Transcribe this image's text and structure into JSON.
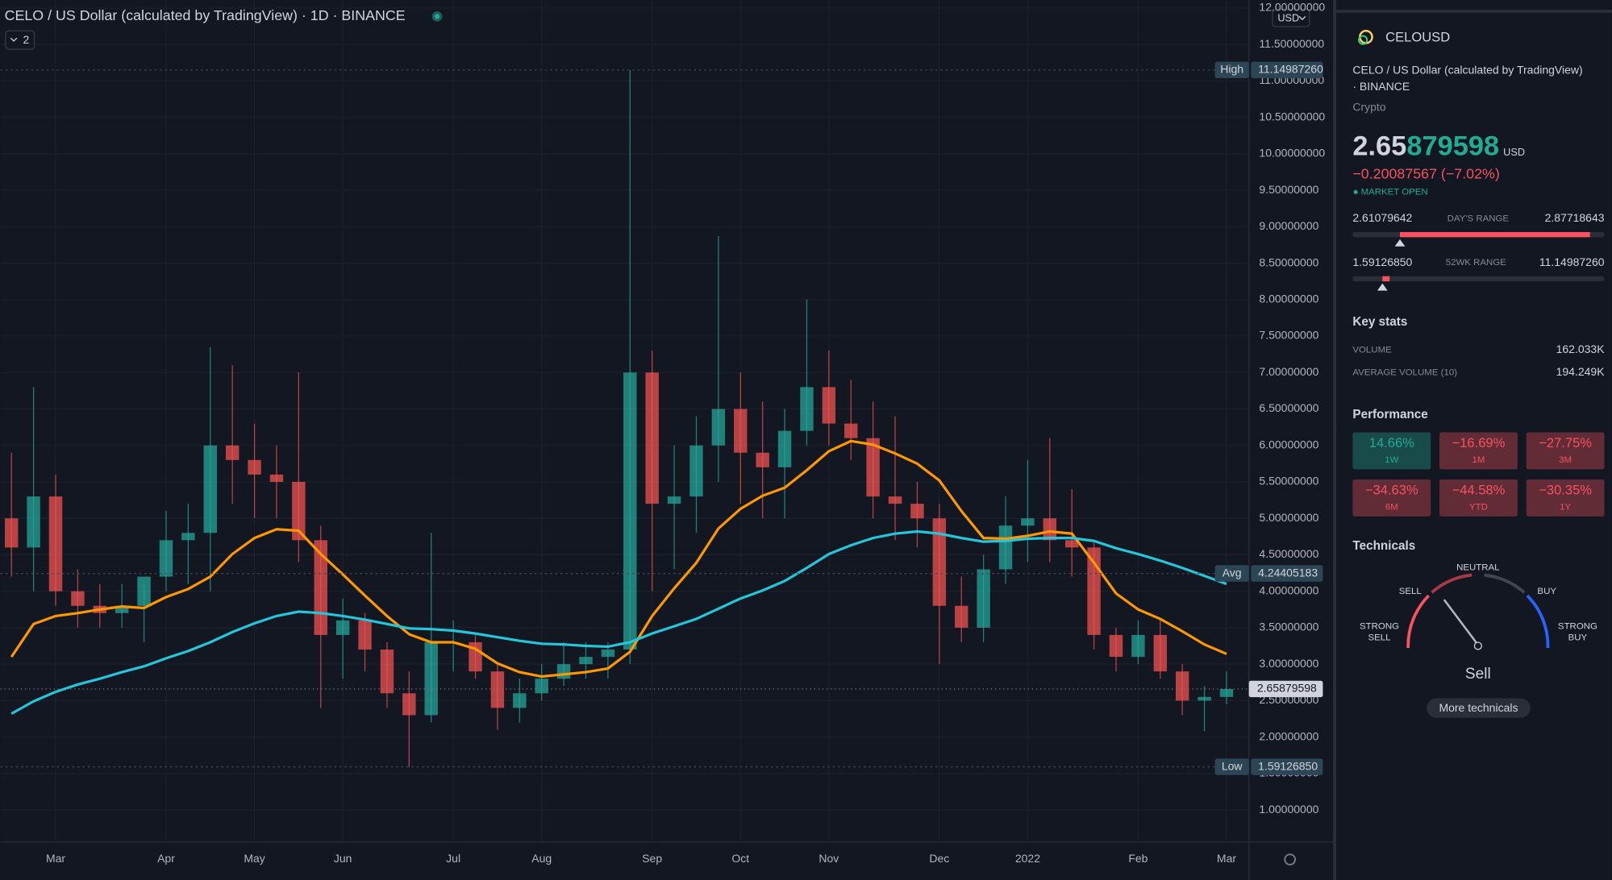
{
  "chart_data": {
    "type": "candlestick",
    "legend_title": "CELO / US Dollar (calculated by TradingView) · 1D · BINANCE",
    "indicator_count": "2",
    "currency": "USD",
    "categories": [
      null,
      null,
      "Mar",
      null,
      null,
      null,
      null,
      "Apr",
      null,
      null,
      null,
      "May",
      null,
      null,
      null,
      "Jun",
      null,
      null,
      null,
      null,
      "Jul",
      null,
      null,
      null,
      "Aug",
      null,
      null,
      null,
      null,
      "Sep",
      null,
      null,
      null,
      "Oct",
      null,
      null,
      null,
      "Nov",
      null,
      null,
      null,
      null,
      "Dec",
      null,
      null,
      null,
      "2022",
      null,
      null,
      null,
      null,
      "Feb",
      null,
      null,
      null,
      "Mar"
    ],
    "open": [
      5.0,
      4.6,
      5.3,
      4.0,
      3.8,
      3.7,
      3.8,
      4.2,
      4.7,
      4.8,
      6.0,
      5.8,
      5.6,
      5.5,
      4.7,
      3.4,
      3.6,
      3.2,
      2.6,
      2.3,
      3.3,
      3.3,
      2.9,
      2.4,
      2.6,
      2.8,
      3.0,
      3.1,
      3.2,
      7.0,
      5.2,
      5.3,
      6.0,
      6.5,
      5.9,
      5.7,
      6.2,
      6.8,
      6.3,
      6.1,
      5.3,
      5.2,
      5.0,
      3.8,
      3.5,
      4.3,
      4.9,
      5.0,
      4.7,
      4.6,
      3.4,
      3.1,
      3.4,
      2.9,
      2.5,
      2.55
    ],
    "high": [
      5.9,
      6.8,
      5.6,
      4.3,
      4.1,
      4.1,
      4.1,
      5.1,
      5.2,
      7.35,
      7.1,
      6.3,
      6.0,
      7.0,
      4.9,
      3.9,
      3.7,
      3.3,
      2.9,
      4.8,
      3.6,
      3.4,
      3.0,
      2.8,
      3.0,
      3.3,
      3.3,
      3.3,
      11.15,
      7.3,
      6.0,
      6.4,
      8.87,
      7.0,
      6.6,
      6.5,
      8.0,
      7.3,
      6.9,
      6.6,
      6.4,
      5.5,
      5.2,
      4.2,
      4.5,
      5.3,
      5.8,
      6.1,
      5.4,
      4.7,
      3.5,
      3.6,
      3.6,
      3.0,
      2.7,
      2.9
    ],
    "low": [
      4.2,
      4.0,
      3.8,
      3.5,
      3.5,
      3.5,
      3.3,
      4.0,
      4.1,
      4.0,
      5.2,
      5.0,
      5.0,
      4.4,
      2.4,
      2.8,
      2.9,
      2.4,
      1.59,
      2.2,
      2.9,
      2.8,
      2.1,
      2.2,
      2.5,
      2.7,
      2.8,
      2.8,
      3.0,
      4.0,
      4.3,
      4.8,
      5.5,
      5.2,
      5.0,
      5.0,
      6.0,
      6.0,
      5.8,
      5.0,
      4.7,
      4.6,
      3.0,
      3.3,
      3.3,
      4.1,
      4.4,
      4.4,
      4.2,
      3.2,
      2.9,
      3.0,
      2.8,
      2.3,
      2.08,
      2.45
    ],
    "close": [
      4.6,
      5.3,
      4.0,
      3.8,
      3.7,
      3.8,
      4.2,
      4.7,
      4.8,
      6.0,
      5.8,
      5.6,
      5.5,
      4.7,
      3.4,
      3.6,
      3.2,
      2.6,
      2.3,
      3.3,
      3.3,
      2.9,
      2.4,
      2.6,
      2.8,
      3.0,
      3.1,
      3.2,
      7.0,
      5.2,
      5.3,
      6.0,
      6.5,
      5.9,
      5.7,
      6.2,
      6.8,
      6.3,
      6.1,
      5.3,
      5.2,
      5.0,
      3.8,
      3.5,
      4.3,
      4.9,
      5.0,
      4.7,
      4.6,
      3.4,
      3.1,
      3.4,
      2.9,
      2.5,
      2.55,
      2.65879598
    ],
    "up_color": "#26a69a",
    "down_color": "#ef5350",
    "series": [
      {
        "color": "#ff9800",
        "values": [
          3.1,
          3.55,
          3.66,
          3.7,
          3.75,
          3.79,
          3.77,
          3.92,
          4.03,
          4.2,
          4.51,
          4.73,
          4.85,
          4.83,
          4.51,
          4.23,
          3.94,
          3.66,
          3.41,
          3.3,
          3.3,
          3.21,
          3.01,
          2.89,
          2.83,
          2.86,
          2.89,
          2.94,
          3.17,
          3.66,
          4.04,
          4.39,
          4.86,
          5.13,
          5.31,
          5.42,
          5.66,
          5.92,
          6.06,
          6.01,
          5.89,
          5.75,
          5.52,
          5.1,
          4.73,
          4.72,
          4.76,
          4.82,
          4.79,
          4.39,
          3.97,
          3.75,
          3.62,
          3.45,
          3.27,
          3.14
        ]
      },
      {
        "color": "#26c6da",
        "values": [
          2.32,
          2.49,
          2.62,
          2.72,
          2.8,
          2.89,
          2.97,
          3.08,
          3.18,
          3.3,
          3.44,
          3.56,
          3.66,
          3.72,
          3.7,
          3.66,
          3.61,
          3.55,
          3.49,
          3.48,
          3.46,
          3.42,
          3.37,
          3.32,
          3.28,
          3.27,
          3.25,
          3.24,
          3.3,
          3.42,
          3.52,
          3.62,
          3.76,
          3.9,
          4.01,
          4.14,
          4.32,
          4.51,
          4.63,
          4.73,
          4.79,
          4.82,
          4.79,
          4.73,
          4.68,
          4.69,
          4.72,
          4.73,
          4.73,
          4.69,
          4.59,
          4.51,
          4.42,
          4.32,
          4.21,
          4.1
        ]
      }
    ],
    "markers": [
      {
        "name": "High",
        "value": 11.1498726,
        "value_label": "11.14987260"
      },
      {
        "name": "Avg",
        "value": 4.24405183,
        "value_label": "4.24405183"
      },
      {
        "name": "Low",
        "value": 1.5912685,
        "value_label": "1.59126850"
      }
    ],
    "ylim": [
      0.56,
      12.11
    ],
    "yticks": [
      {
        "value": 1,
        "label": "1.00000000"
      },
      {
        "value": 1.5,
        "label": "1.50000000"
      },
      {
        "value": 2,
        "label": "2.00000000"
      },
      {
        "value": 2.5,
        "label": "2.50000000"
      },
      {
        "value": 3,
        "label": "3.00000000"
      },
      {
        "value": 3.5,
        "label": "3.50000000"
      },
      {
        "value": 4,
        "label": "4.00000000"
      },
      {
        "value": 4.5,
        "label": "4.50000000"
      },
      {
        "value": 5,
        "label": "5.00000000"
      },
      {
        "value": 5.5,
        "label": "5.50000000"
      },
      {
        "value": 6,
        "label": "6.00000000"
      },
      {
        "value": 6.5,
        "label": "6.50000000"
      },
      {
        "value": 7,
        "label": "7.00000000"
      },
      {
        "value": 7.5,
        "label": "7.50000000"
      },
      {
        "value": 8,
        "label": "8.00000000"
      },
      {
        "value": 8.5,
        "label": "8.50000000"
      },
      {
        "value": 9,
        "label": "9.00000000"
      },
      {
        "value": 9.5,
        "label": "9.50000000"
      },
      {
        "value": 10,
        "label": "10.00000000"
      },
      {
        "value": 10.5,
        "label": "10.50000000"
      },
      {
        "value": 11,
        "label": "11.00000000"
      },
      {
        "value": 11.5,
        "label": "11.50000000"
      },
      {
        "value": 12,
        "label": "12.00000000"
      }
    ],
    "grid": true
  },
  "sidebar": {
    "symbol": "CELOUSD",
    "description": "CELO / US Dollar (calculated by TradingView)",
    "exchange": "· BINANCE",
    "asset_type": "Crypto",
    "price_main": "2.65",
    "price_rest": "879598",
    "price_currency": "USD",
    "change": "−0.20087567 (−7.02%)",
    "market_status": "MARKET OPEN",
    "day_range": {
      "label": "DAY'S RANGE",
      "low": "2.61079642",
      "high": "2.87718643"
    },
    "week52_range": {
      "label": "52WK RANGE",
      "low": "1.59126850",
      "high": "11.14987260"
    },
    "key_stats": {
      "title": "Key stats",
      "rows": [
        [
          "VOLUME",
          "162.033K"
        ],
        [
          "AVERAGE VOLUME (10)",
          "194.249K"
        ]
      ]
    },
    "performance": {
      "title": "Performance",
      "tiles": [
        {
          "value": "14.66%",
          "period": "1W",
          "color": "#22ab94"
        },
        {
          "value": "−16.69%",
          "period": "1M",
          "color": "#f7525f"
        },
        {
          "value": "−27.75%",
          "period": "3M",
          "color": "#f7525f"
        },
        {
          "value": "−34.63%",
          "period": "6M",
          "color": "#f7525f"
        },
        {
          "value": "−44.58%",
          "period": "YTD",
          "color": "#f7525f"
        },
        {
          "value": "−30.35%",
          "period": "1Y",
          "color": "#f7525f"
        }
      ]
    },
    "technicals": {
      "title": "Technicals",
      "neutral": "NEUTRAL",
      "sell": "SELL",
      "buy": "BUY",
      "strong_sell": [
        "STRONG",
        "SELL"
      ],
      "strong_buy": [
        "STRONG",
        "BUY"
      ],
      "rating": "Sell",
      "button": "More technicals"
    }
  }
}
